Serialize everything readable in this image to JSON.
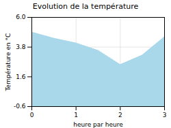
{
  "chart_data": {
    "type": "area",
    "title": "Evolution de la température",
    "xlabel": "heure par heure",
    "ylabel": "Température en °C",
    "x": [
      0,
      0.5,
      1,
      1.5,
      2,
      2.5,
      3
    ],
    "values": [
      4.9,
      4.45,
      4.1,
      3.55,
      2.5,
      3.2,
      4.55
    ],
    "color": "#a8d8ea",
    "line_style": "dotted",
    "xlim": [
      0,
      3
    ],
    "ylim": [
      -0.6,
      6.0
    ],
    "xticks": [
      0,
      1,
      2,
      3
    ],
    "yticks": [
      -0.6,
      1.6,
      3.8,
      {
        "value": 6.0,
        "label": "6.0"
      }
    ],
    "grid": true
  }
}
